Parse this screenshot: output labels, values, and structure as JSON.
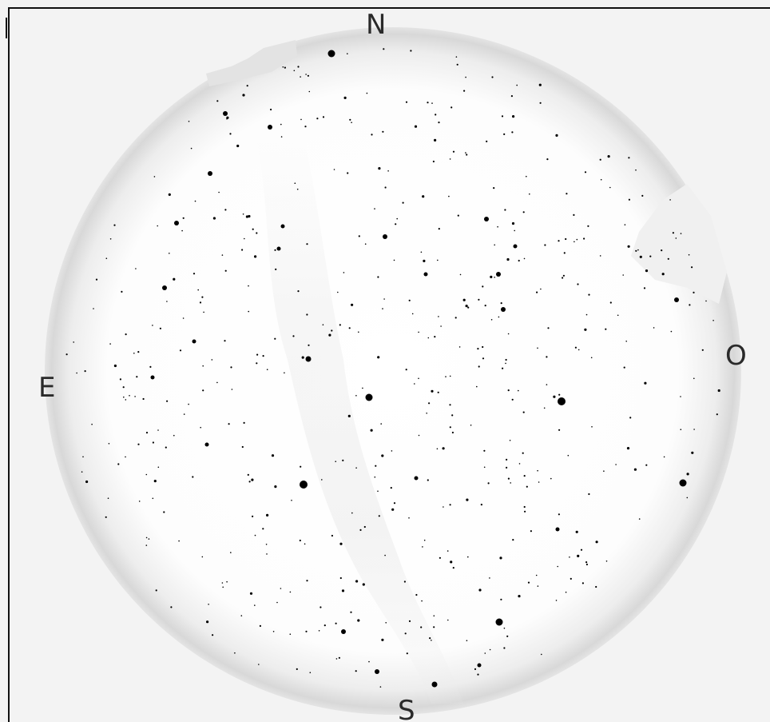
{
  "compass": {
    "north": "N",
    "east": "E",
    "west": "O",
    "south": "S"
  },
  "colors": {
    "background": "#f3f3f3",
    "sky_center": "#ffffff",
    "sky_rim": "#d6d6d6",
    "star": "#000000",
    "border": "#111111"
  }
}
